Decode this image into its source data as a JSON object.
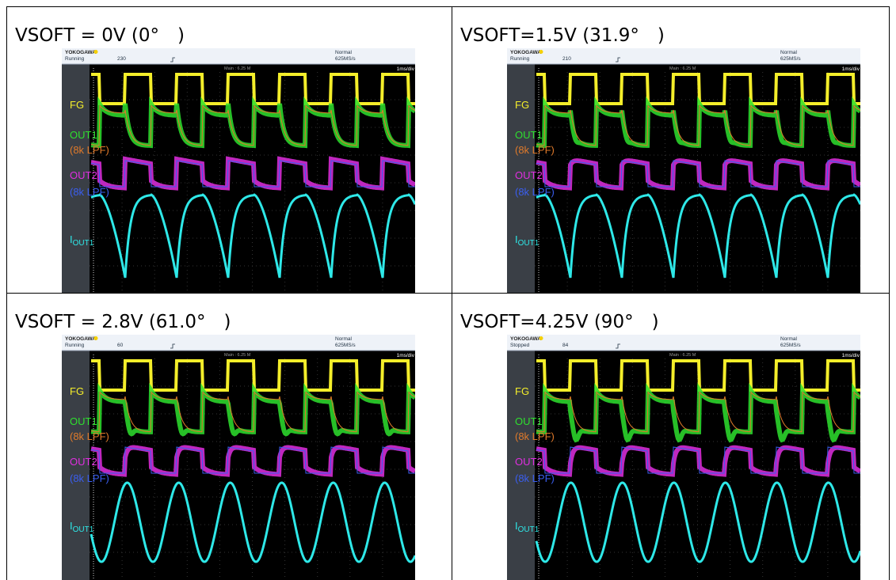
{
  "panels": [
    {
      "title": "VSOFT = 0V (0°　)",
      "scope": {
        "brand": "YOKOGAWA",
        "status": "Running",
        "count": 230,
        "mode": "Normal",
        "rate": "625MS/s",
        "main": "Main : 6.25 M",
        "timebase": "1ms/div",
        "fg": "FG",
        "out1": "OUT1",
        "out1_filter": "(8k LPF)",
        "out2": "OUT2",
        "out2_filter": "(8k LPF)",
        "iout": "I",
        "iout_sub": "OUT1"
      }
    },
    {
      "title": "VSOFT=1.5V (31.9°　)",
      "scope": {
        "brand": "YOKOGAWA",
        "status": "Running",
        "count": 210,
        "mode": "Normal",
        "rate": "625MS/s",
        "main": "Main : 6.25 M",
        "timebase": "1ms/div",
        "fg": "FG",
        "out1": "OUT1",
        "out1_filter": "(8k LPF)",
        "out2": "OUT2",
        "out2_filter": "(8k LPF)",
        "iout": "I",
        "iout_sub": "OUT1"
      }
    },
    {
      "title": "VSOFT = 2.8V (61.0°　)",
      "scope": {
        "brand": "YOKOGAWA",
        "status": "Running",
        "count": 60,
        "mode": "Normal",
        "rate": "625MS/s",
        "main": "Main : 6.25 M",
        "timebase": "1ms/div",
        "fg": "FG",
        "out1": "OUT1",
        "out1_filter": "(8k LPF)",
        "out2": "OUT2",
        "out2_filter": "(8k LPF)",
        "iout": "I",
        "iout_sub": "OUT1"
      }
    },
    {
      "title": "VSOFT=4.25V (90°　)",
      "scope": {
        "brand": "YOKOGAWA",
        "status": "Stopped",
        "count": 84,
        "mode": "Normal",
        "rate": "625MS/s",
        "main": "Main : 6.25 M",
        "timebase": "1ms/div",
        "fg": "FG",
        "out1": "OUT1",
        "out1_filter": "(8k LPF)",
        "out2": "OUT2",
        "out2_filter": "(8k LPF)",
        "iout": "I",
        "iout_sub": "OUT1"
      }
    }
  ]
}
